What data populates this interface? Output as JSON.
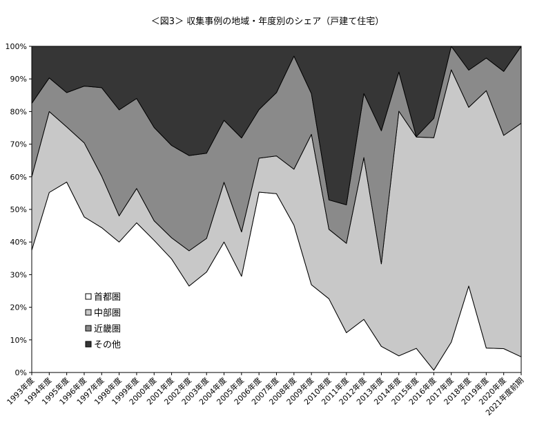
{
  "chart_data": {
    "type": "area",
    "title": "＜図3＞ 収集事例の地域・年度別のシェア（戸建て住宅）",
    "stacked": true,
    "normalized": true,
    "xlabel": "",
    "ylabel": "",
    "ylim": [
      0,
      100
    ],
    "y_ticks": [
      "0%",
      "10%",
      "20%",
      "30%",
      "40%",
      "50%",
      "60%",
      "70%",
      "80%",
      "90%",
      "100%"
    ],
    "grid": false,
    "legend_placement": "bottom-left",
    "categories": [
      "1993年度",
      "1994年度",
      "1995年度",
      "1996年度",
      "1997年度",
      "1998年度",
      "1999年度",
      "2000年度",
      "2001年度",
      "2002年度",
      "2003年度",
      "2004年度",
      "2005年度",
      "2006年度",
      "2007年度",
      "2008年度",
      "2009年度",
      "2010年度",
      "2011年度",
      "2012年度",
      "2013年度",
      "2014年度",
      "2015年度",
      "2016年度",
      "2017年度",
      "2018年度",
      "2019年度",
      "2020年度",
      "2021年度前期"
    ],
    "series": [
      {
        "name": "首都圏",
        "color": "#ffffff",
        "values": [
          37.5,
          55.2,
          58.4,
          47.7,
          44.4,
          40.0,
          45.9,
          40.5,
          34.8,
          26.5,
          30.8,
          40.0,
          29.5,
          55.3,
          54.8,
          45.2,
          26.9,
          22.6,
          12.2,
          16.3,
          8.0,
          5.1,
          7.4,
          0.7,
          9.3,
          26.5,
          7.5,
          7.3,
          4.8
        ]
      },
      {
        "name": "中部圏",
        "color": "#c8c8c8",
        "values": [
          22.5,
          24.8,
          16.9,
          22.7,
          15.8,
          8.0,
          10.5,
          6.0,
          6.5,
          10.8,
          10.3,
          18.3,
          13.6,
          10.4,
          11.6,
          17.1,
          46.1,
          21.3,
          27.4,
          49.6,
          25.3,
          75.0,
          64.8,
          71.3,
          83.5,
          54.8,
          78.9,
          65.4,
          71.6
        ]
      },
      {
        "name": "近畿圏",
        "color": "#8a8a8a",
        "values": [
          22.5,
          10.3,
          10.5,
          17.4,
          27.1,
          32.5,
          27.6,
          28.6,
          28.3,
          29.2,
          26.1,
          19.0,
          28.8,
          14.9,
          19.4,
          34.7,
          12.5,
          9.0,
          11.8,
          19.6,
          40.8,
          12.0,
          0.1,
          5.9,
          7.2,
          11.4,
          10.0,
          19.6,
          23.6
        ]
      },
      {
        "name": "その他",
        "color": "#363636",
        "values": [
          17.5,
          9.7,
          14.2,
          12.2,
          12.7,
          19.5,
          16.0,
          24.9,
          30.4,
          33.5,
          32.8,
          22.7,
          28.1,
          19.4,
          14.2,
          3.0,
          14.5,
          47.1,
          48.6,
          14.5,
          25.9,
          7.9,
          27.7,
          22.1,
          0.0,
          7.3,
          3.6,
          7.7,
          0.0
        ]
      }
    ]
  }
}
